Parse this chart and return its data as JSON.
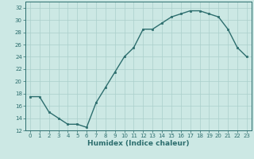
{
  "x": [
    0,
    1,
    2,
    3,
    4,
    5,
    6,
    7,
    8,
    9,
    10,
    11,
    12,
    13,
    14,
    15,
    16,
    17,
    18,
    19,
    20,
    21,
    22,
    23
  ],
  "y": [
    17.5,
    17.5,
    15.0,
    14.0,
    13.0,
    13.0,
    12.5,
    16.5,
    19.0,
    21.5,
    24.0,
    25.5,
    28.5,
    28.5,
    29.5,
    30.5,
    31.0,
    31.5,
    31.5,
    31.0,
    30.5,
    28.5,
    25.5,
    24.0
  ],
  "xlabel": "Humidex (Indice chaleur)",
  "xlim": [
    -0.5,
    23.5
  ],
  "ylim": [
    12,
    33
  ],
  "yticks": [
    12,
    14,
    16,
    18,
    20,
    22,
    24,
    26,
    28,
    30,
    32
  ],
  "xticks": [
    0,
    1,
    2,
    3,
    4,
    5,
    6,
    7,
    8,
    9,
    10,
    11,
    12,
    13,
    14,
    15,
    16,
    17,
    18,
    19,
    20,
    21,
    22,
    23
  ],
  "line_color": "#2d6e6e",
  "marker_color": "#2d6e6e",
  "bg_color": "#cce8e4",
  "grid_color": "#aacfcb",
  "axes_color": "#2d6e6e",
  "tick_fontsize": 5.0,
  "xlabel_fontsize": 6.5,
  "linewidth": 1.0,
  "markersize": 2.0
}
